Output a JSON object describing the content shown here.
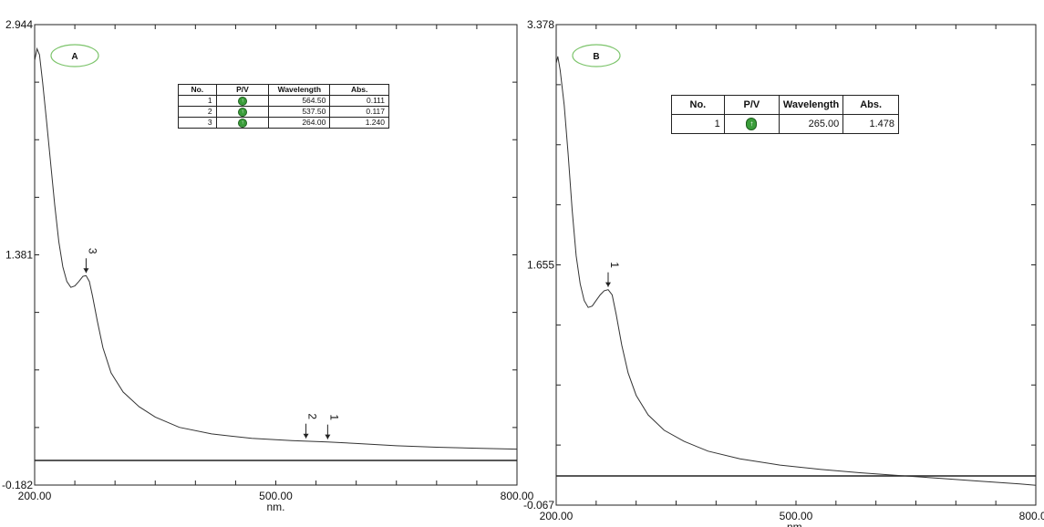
{
  "chart_data": [
    {
      "type": "line",
      "badge": "A",
      "xlabel": "nm.",
      "xlim": [
        200,
        800
      ],
      "ylim": [
        -0.182,
        2.944
      ],
      "x_ticks": [
        "200.00",
        "500.00",
        "800.00"
      ],
      "y_ticks": [
        "2.944",
        "1.381",
        "-0.182"
      ],
      "series": [
        {
          "x": [
            200,
            203,
            206,
            210,
            215,
            220,
            225,
            230,
            235,
            240,
            245,
            250,
            255,
            260,
            264,
            268,
            272,
            278,
            285,
            295,
            310,
            330,
            350,
            380,
            420,
            470,
            520,
            564.5,
            600,
            650,
            700,
            750,
            800
          ],
          "y": [
            2.7,
            2.78,
            2.74,
            2.55,
            2.28,
            2.0,
            1.72,
            1.47,
            1.3,
            1.2,
            1.16,
            1.17,
            1.2,
            1.235,
            1.24,
            1.2,
            1.1,
            0.93,
            0.75,
            0.58,
            0.45,
            0.35,
            0.28,
            0.21,
            0.165,
            0.135,
            0.12,
            0.111,
            0.1,
            0.085,
            0.075,
            0.068,
            0.062
          ]
        }
      ],
      "peak_markers": [
        {
          "label": "3",
          "x": 264.0,
          "y": 1.24
        },
        {
          "label": "2",
          "x": 537.5,
          "y": 0.117
        },
        {
          "label": "1",
          "x": 564.5,
          "y": 0.111
        }
      ],
      "table": {
        "headers": [
          "No.",
          "P/V",
          "Wavelength",
          "Abs."
        ],
        "rows": [
          {
            "no": "1",
            "wavelength": "564.50",
            "abs": "0.111"
          },
          {
            "no": "2",
            "wavelength": "537.50",
            "abs": "0.117"
          },
          {
            "no": "3",
            "wavelength": "264.00",
            "abs": "1.240"
          }
        ]
      }
    },
    {
      "type": "line",
      "badge": "B",
      "xlabel": "nm.",
      "xlim": [
        200,
        800
      ],
      "ylim": [
        -0.067,
        3.378
      ],
      "x_ticks": [
        "200.00",
        "500.00",
        "800.00"
      ],
      "y_ticks": [
        "3.378",
        "1.655",
        "-0.067"
      ],
      "series": [
        {
          "x": [
            200,
            202,
            205,
            210,
            215,
            220,
            225,
            230,
            235,
            240,
            245,
            250,
            255,
            260,
            265,
            270,
            275,
            282,
            290,
            300,
            315,
            335,
            360,
            390,
            430,
            480,
            530,
            580,
            630,
            680,
            730,
            780,
            800
          ],
          "y": [
            3.1,
            3.15,
            3.05,
            2.8,
            2.45,
            2.05,
            1.72,
            1.52,
            1.4,
            1.35,
            1.36,
            1.4,
            1.44,
            1.47,
            1.478,
            1.44,
            1.3,
            1.08,
            0.88,
            0.72,
            0.58,
            0.47,
            0.39,
            0.32,
            0.265,
            0.22,
            0.19,
            0.165,
            0.145,
            0.125,
            0.105,
            0.085,
            0.075
          ]
        }
      ],
      "peak_markers": [
        {
          "label": "1",
          "x": 265.0,
          "y": 1.478
        }
      ],
      "table": {
        "headers": [
          "No.",
          "P/V",
          "Wavelength",
          "Abs."
        ],
        "rows": [
          {
            "no": "1",
            "wavelength": "265.00",
            "abs": "1.478"
          }
        ]
      }
    }
  ]
}
